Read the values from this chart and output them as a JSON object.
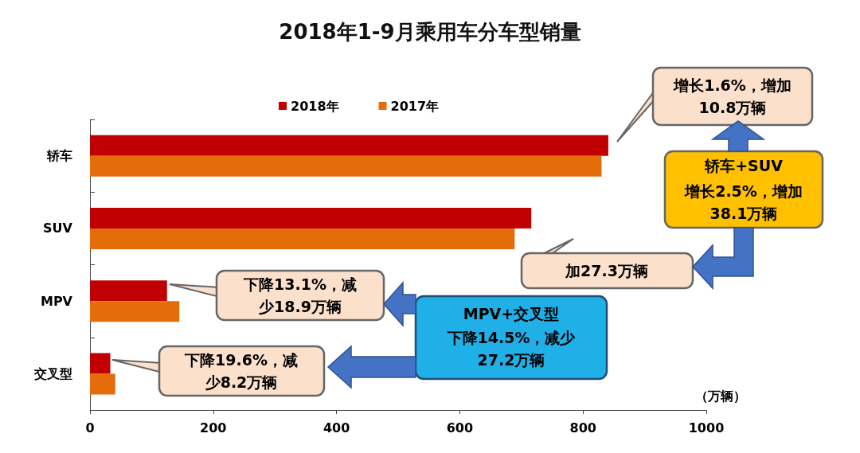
{
  "chart_data": {
    "type": "bar",
    "orientation": "horizontal",
    "title": "2018年1-9月乘用车分车型销量",
    "xlabel": "（万辆）",
    "categories": [
      "轿车",
      "SUV",
      "MPV",
      "交叉型"
    ],
    "series": [
      {
        "name": "2018年",
        "color": "#c00000",
        "values": [
          841,
          716,
          125,
          33
        ]
      },
      {
        "name": "2017年",
        "color": "#e46c0a",
        "values": [
          830,
          689,
          145,
          41
        ]
      }
    ],
    "xlim": [
      0,
      1000
    ],
    "xticks": [
      0,
      200,
      400,
      600,
      800,
      1000
    ],
    "grid": false,
    "legend": "top left",
    "annotations": [
      "增长1.6%，增加10.8万辆",
      "加27.3万辆",
      "下降13.1%，减少18.9万辆",
      "下降19.6%，减少8.2万辆",
      "轿车+SUV",
      "增长2.5%，增加38.1万辆",
      "MPV+交叉型",
      "下降14.5%，减少27.2万辆"
    ]
  }
}
